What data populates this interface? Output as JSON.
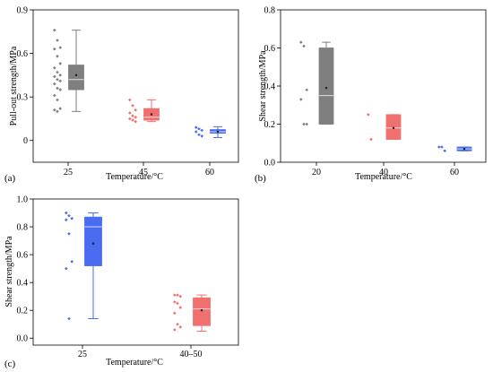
{
  "chart_data": [
    {
      "panel_label": "(a)",
      "type": "box",
      "xlabel": "Temperature/°C",
      "ylabel": "Pull-out strength/MPa",
      "ylim": [
        -0.15,
        0.9
      ],
      "yticks": [
        "0",
        "0.3",
        "0.6",
        "0.9"
      ],
      "categories": [
        "25",
        "45",
        "60"
      ],
      "series": [
        {
          "category": "25",
          "color": "#7f7f7f",
          "points": [
            0.76,
            0.69,
            0.64,
            0.63,
            0.58,
            0.53,
            0.5,
            0.47,
            0.45,
            0.44,
            0.42,
            0.41,
            0.39,
            0.36,
            0.35,
            0.31,
            0.28,
            0.22,
            0.21,
            0.2
          ],
          "whisker_low": 0.2,
          "q1": 0.35,
          "median": 0.42,
          "q3": 0.52,
          "whisker_high": 0.76,
          "mean": 0.45
        },
        {
          "category": "45",
          "color": "#f07070",
          "points": [
            0.28,
            0.24,
            0.21,
            0.19,
            0.17,
            0.16,
            0.15,
            0.14,
            0.13
          ],
          "whisker_low": 0.13,
          "q1": 0.14,
          "median": 0.16,
          "q3": 0.22,
          "whisker_high": 0.28,
          "mean": 0.18
        },
        {
          "category": "60",
          "color": "#4a6cf0",
          "points": [
            0.09,
            0.08,
            0.07,
            0.06,
            0.04,
            0.03
          ],
          "whisker_low": 0.02,
          "q1": 0.05,
          "median": 0.06,
          "q3": 0.075,
          "whisker_high": 0.095,
          "mean": 0.06
        }
      ]
    },
    {
      "panel_label": "(b)",
      "type": "box",
      "xlabel": "Temperature/°C",
      "ylabel": "Shear strength/MPa",
      "ylim": [
        0,
        0.8
      ],
      "yticks": [
        "0.0",
        "0.2",
        "0.4",
        "0.6",
        "0.8"
      ],
      "categories": [
        "20",
        "40",
        "60"
      ],
      "series": [
        {
          "category": "20",
          "color": "#7f7f7f",
          "points": [
            0.63,
            0.61,
            0.38,
            0.33,
            0.2,
            0.2
          ],
          "whisker_low": 0.2,
          "q1": 0.2,
          "median": 0.35,
          "q3": 0.6,
          "whisker_high": 0.63,
          "mean": 0.39
        },
        {
          "category": "40",
          "color": "#f07070",
          "points": [
            0.25,
            0.12
          ],
          "whisker_low": 0.12,
          "q1": 0.12,
          "median": 0.18,
          "q3": 0.25,
          "whisker_high": 0.25,
          "mean": 0.18
        },
        {
          "category": "60",
          "color": "#4a6cf0",
          "points": [
            0.08,
            0.08,
            0.06
          ],
          "whisker_low": 0.06,
          "q1": 0.06,
          "median": 0.07,
          "q3": 0.08,
          "whisker_high": 0.08,
          "mean": 0.07
        }
      ]
    },
    {
      "panel_label": "(c)",
      "type": "box",
      "xlabel": "Temperature/°C",
      "ylabel": "Shear strength/MPa",
      "ylim": [
        -0.05,
        1.0
      ],
      "yticks": [
        "0.0",
        "0.2",
        "0.4",
        "0.6",
        "0.8",
        "1.0"
      ],
      "categories": [
        "25",
        "40–50"
      ],
      "series": [
        {
          "category": "25",
          "color": "#4a6cf0",
          "points": [
            0.9,
            0.88,
            0.86,
            0.85,
            0.75,
            0.55,
            0.5,
            0.14
          ],
          "whisker_low": 0.14,
          "q1": 0.52,
          "median": 0.8,
          "q3": 0.87,
          "whisker_high": 0.9,
          "mean": 0.68
        },
        {
          "category": "40–50",
          "color": "#f07070",
          "points": [
            0.31,
            0.31,
            0.3,
            0.26,
            0.25,
            0.22,
            0.18,
            0.1,
            0.08,
            0.06
          ],
          "whisker_low": 0.05,
          "q1": 0.09,
          "median": 0.21,
          "q3": 0.29,
          "whisker_high": 0.31,
          "mean": 0.2
        }
      ]
    }
  ]
}
